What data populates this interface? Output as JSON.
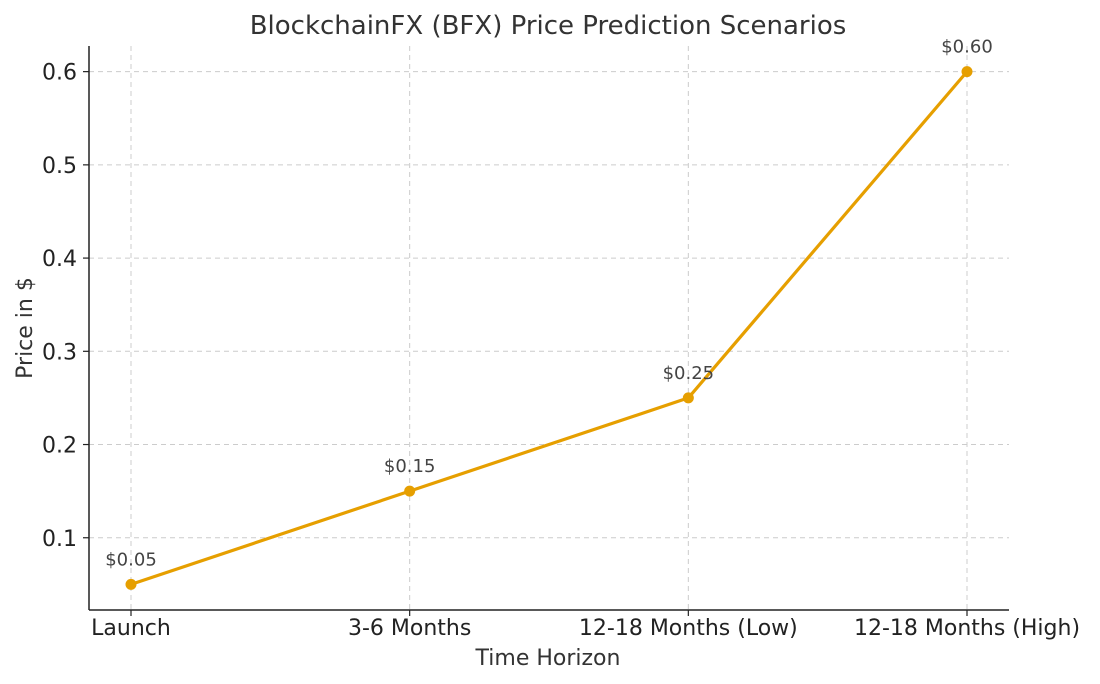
{
  "chart_data": {
    "type": "line",
    "title": "BlockchainFX (BFX) Price Prediction Scenarios",
    "xlabel": "Time Horizon",
    "ylabel": "Price in $",
    "categories": [
      "Launch",
      "3-6 Months",
      "12-18 Months (Low)",
      "12-18 Months (High)"
    ],
    "series": [
      {
        "values": [
          0.05,
          0.15,
          0.25,
          0.6
        ],
        "labels": [
          "$0.05",
          "$0.15",
          "$0.25",
          "$0.60"
        ],
        "color": "#E69F00",
        "marker": "circle"
      }
    ],
    "ylim": [
      0.0225,
      0.6275
    ],
    "yticks": [
      0.1,
      0.2,
      0.3,
      0.4,
      0.5,
      0.6
    ],
    "ytick_labels": [
      "0.1",
      "0.2",
      "0.3",
      "0.4",
      "0.5",
      "0.6"
    ],
    "grid": true,
    "legend": "none"
  }
}
